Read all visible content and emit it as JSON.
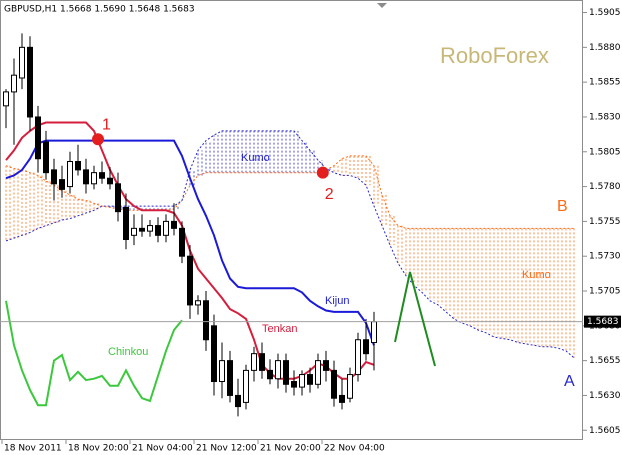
{
  "chart_data": {
    "type": "candlestick",
    "header": "GBPUSD,H1  1.5668 1.5690 1.5648 1.5683",
    "watermark": "RoboForex",
    "xlim": [
      -0.75,
      72.125
    ],
    "ylim": [
      1.5598,
      1.5914
    ],
    "xticks": [
      {
        "value": 0,
        "label": "18 Nov 2011"
      },
      {
        "value": 8,
        "label": "18 Nov 20:00"
      },
      {
        "value": 16,
        "label": "21 Nov 04:00"
      },
      {
        "value": 24,
        "label": "21 Nov 12:00"
      },
      {
        "value": 32,
        "label": "21 Nov 20:00"
      },
      {
        "value": 40,
        "label": "22 Nov 04:00"
      }
    ],
    "yticks": [
      1.5905,
      {
        "value": 1.588,
        "label": "1.5880"
      },
      1.5855,
      {
        "value": 1.583,
        "label": "1.5830"
      },
      1.5805,
      {
        "value": 1.578,
        "label": "1.5780"
      },
      1.5755,
      {
        "value": 1.573,
        "label": "1.5730"
      },
      1.5705,
      {
        "value": 1.568,
        "label": "1.5680"
      },
      1.5655,
      {
        "value": 1.563,
        "label": "1.5630"
      },
      1.5605
    ],
    "current_price": 1.5683,
    "open": [
      1.5838,
      1.5848,
      1.5858,
      1.588,
      1.583,
      1.5812,
      1.5792,
      1.5785,
      1.578,
      1.5798,
      1.5792,
      1.5782,
      1.579,
      1.5786,
      1.5782,
      1.5765,
      1.5745,
      1.575,
      1.5748,
      1.5752,
      1.5745,
      1.5755,
      1.575,
      1.573,
      1.5695,
      1.5698,
      1.568,
      1.564,
      1.5655,
      1.563,
      1.5625,
      1.5648,
      1.566,
      1.5648,
      1.5642,
      1.5655,
      1.564,
      1.5636,
      1.5645,
      1.5638,
      1.5655,
      1.5648,
      1.563,
      1.5628,
      1.5645,
      1.567,
      1.5668
    ],
    "high": [
      1.585,
      1.5872,
      1.589,
      1.5888,
      1.5838,
      1.582,
      1.58,
      1.5795,
      1.5805,
      1.581,
      1.58,
      1.5795,
      1.5798,
      1.5794,
      1.579,
      1.5775,
      1.576,
      1.576,
      1.5756,
      1.5758,
      1.576,
      1.5768,
      1.5755,
      1.5738,
      1.5702,
      1.5705,
      1.5688,
      1.5668,
      1.5662,
      1.5642,
      1.5652,
      1.5665,
      1.5668,
      1.5656,
      1.566,
      1.566,
      1.5648,
      1.5648,
      1.565,
      1.566,
      1.5662,
      1.5655,
      1.5642,
      1.565,
      1.5675,
      1.5685,
      1.569
    ],
    "low": [
      1.5822,
      1.581,
      1.585,
      1.582,
      1.579,
      1.5785,
      1.577,
      1.5772,
      1.5775,
      1.5788,
      1.5775,
      1.5778,
      1.5782,
      1.5778,
      1.5755,
      1.5735,
      1.5738,
      1.5744,
      1.5744,
      1.574,
      1.574,
      1.5745,
      1.5725,
      1.5685,
      1.5688,
      1.5662,
      1.563,
      1.5628,
      1.5625,
      1.5615,
      1.562,
      1.564,
      1.5642,
      1.5638,
      1.5635,
      1.5632,
      1.563,
      1.563,
      1.5632,
      1.5635,
      1.564,
      1.5622,
      1.562,
      1.5625,
      1.564,
      1.5655,
      1.5648
    ],
    "close": [
      1.5848,
      1.586,
      1.588,
      1.583,
      1.58,
      1.579,
      1.5782,
      1.5778,
      1.5798,
      1.5792,
      1.5782,
      1.579,
      1.5786,
      1.5782,
      1.5762,
      1.5742,
      1.575,
      1.5748,
      1.5752,
      1.5745,
      1.5755,
      1.575,
      1.573,
      1.5695,
      1.5698,
      1.567,
      1.564,
      1.5655,
      1.563,
      1.5622,
      1.5648,
      1.566,
      1.5648,
      1.5642,
      1.5655,
      1.5638,
      1.5636,
      1.5645,
      1.5638,
      1.5655,
      1.5648,
      1.5628,
      1.5625,
      1.5645,
      1.567,
      1.566,
      1.5683
    ],
    "lines": [
      {
        "name": "Tenkan",
        "color": "#d41e3c",
        "values": [
          1.5799,
          1.5806,
          1.5815,
          1.582,
          1.5824,
          1.5826,
          1.5826,
          1.5826,
          1.5826,
          1.5826,
          1.5826,
          1.582,
          1.5806,
          1.5792,
          1.5781,
          1.5771,
          1.5766,
          1.5763,
          1.5763,
          1.5763,
          1.5763,
          1.5761,
          1.5752,
          1.5734,
          1.5721,
          1.5714,
          1.5707,
          1.57,
          1.5692,
          1.5689,
          1.5685,
          1.567,
          1.5652,
          1.5646,
          1.5642,
          1.5642,
          1.5642,
          1.5644,
          1.5648,
          1.5653,
          1.5651,
          1.5646,
          1.5642,
          1.5642,
          1.5647,
          1.5654,
          1.5652
        ]
      },
      {
        "name": "Kijun",
        "color": "#1a1ad8",
        "values": [
          1.5786,
          1.5788,
          1.5792,
          1.58,
          1.5811,
          1.5813,
          1.5813,
          1.5813,
          1.5813,
          1.5813,
          1.5813,
          1.5813,
          1.5813,
          1.5813,
          1.5813,
          1.5813,
          1.5813,
          1.5813,
          1.5813,
          1.5813,
          1.5813,
          1.5813,
          1.5802,
          1.5786,
          1.5771,
          1.5759,
          1.5745,
          1.5727,
          1.5714,
          1.5708,
          1.5707,
          1.5707,
          1.5707,
          1.5707,
          1.5707,
          1.5707,
          1.5707,
          1.5704,
          1.5698,
          1.5694,
          1.5691,
          1.569,
          1.569,
          1.569,
          1.569,
          1.5682,
          1.5666
        ]
      },
      {
        "name": "Chinkou",
        "color": "#3cc83c",
        "values": [
          1.5698,
          1.5666,
          1.5648,
          1.5634,
          1.5623,
          1.5623,
          1.5655,
          1.5659,
          1.5641,
          1.5647,
          1.5641,
          1.5642,
          1.5644,
          1.5637,
          1.5637,
          1.5648,
          1.5637,
          1.5628,
          1.5626,
          1.5644,
          1.5662,
          1.5677,
          1.5684
        ]
      }
    ],
    "kumo": {
      "span_a": {
        "label": "Kumo",
        "color": "#ff6a14",
        "values": [
          1.5795,
          1.5793,
          1.5792,
          1.579,
          1.5788,
          1.5784,
          1.5781,
          1.5777,
          1.5774,
          1.5771,
          1.577,
          1.5768,
          1.5766,
          1.5765,
          1.5764,
          1.5763,
          1.5763,
          1.5763,
          1.5763,
          1.5763,
          1.5763,
          1.5764,
          1.577,
          1.5781,
          1.5788,
          1.579,
          1.579,
          1.579,
          1.579,
          1.579,
          1.579,
          1.579,
          1.579,
          1.579,
          1.579,
          1.579,
          1.579,
          1.579,
          1.579,
          1.579,
          1.5792,
          1.5795,
          1.58,
          1.5802,
          1.5802,
          1.5802,
          1.5795,
          1.5774,
          1.5759,
          1.5752,
          1.575,
          1.575,
          1.575,
          1.575,
          1.575,
          1.575,
          1.575,
          1.575,
          1.575,
          1.575,
          1.575,
          1.575,
          1.575,
          1.575,
          1.575,
          1.575,
          1.575,
          1.575,
          1.575,
          1.575,
          1.575,
          1.575
        ]
      },
      "span_b": {
        "label": "Kumo",
        "color": "#2626c8",
        "values": [
          1.5741,
          1.5743,
          1.5745,
          1.5747,
          1.575,
          1.5752,
          1.5754,
          1.5756,
          1.5757,
          1.5759,
          1.5761,
          1.5763,
          1.5766,
          1.5766,
          1.5766,
          1.5766,
          1.5766,
          1.5766,
          1.5766,
          1.5766,
          1.5766,
          1.5766,
          1.577,
          1.5792,
          1.5806,
          1.5813,
          1.5817,
          1.582,
          1.582,
          1.582,
          1.582,
          1.582,
          1.582,
          1.582,
          1.582,
          1.582,
          1.582,
          1.5813,
          1.5806,
          1.5799,
          1.5793,
          1.579,
          1.5788,
          1.5788,
          1.5786,
          1.5781,
          1.5766,
          1.5752,
          1.5738,
          1.5725,
          1.5716,
          1.5709,
          1.5704,
          1.5698,
          1.5695,
          1.569,
          1.5685,
          1.5682,
          1.568,
          1.5677,
          1.5675,
          1.5672,
          1.5671,
          1.567,
          1.5668,
          1.5667,
          1.5666,
          1.5665,
          1.5665,
          1.5664,
          1.5662,
          1.5657
        ]
      }
    },
    "markers": [
      {
        "label": "1",
        "x": 11.5,
        "value": 1.5814
      },
      {
        "label": "2",
        "x": 39.6,
        "value": 1.579
      }
    ],
    "annotations": {
      "b": "B",
      "a": "A"
    }
  }
}
